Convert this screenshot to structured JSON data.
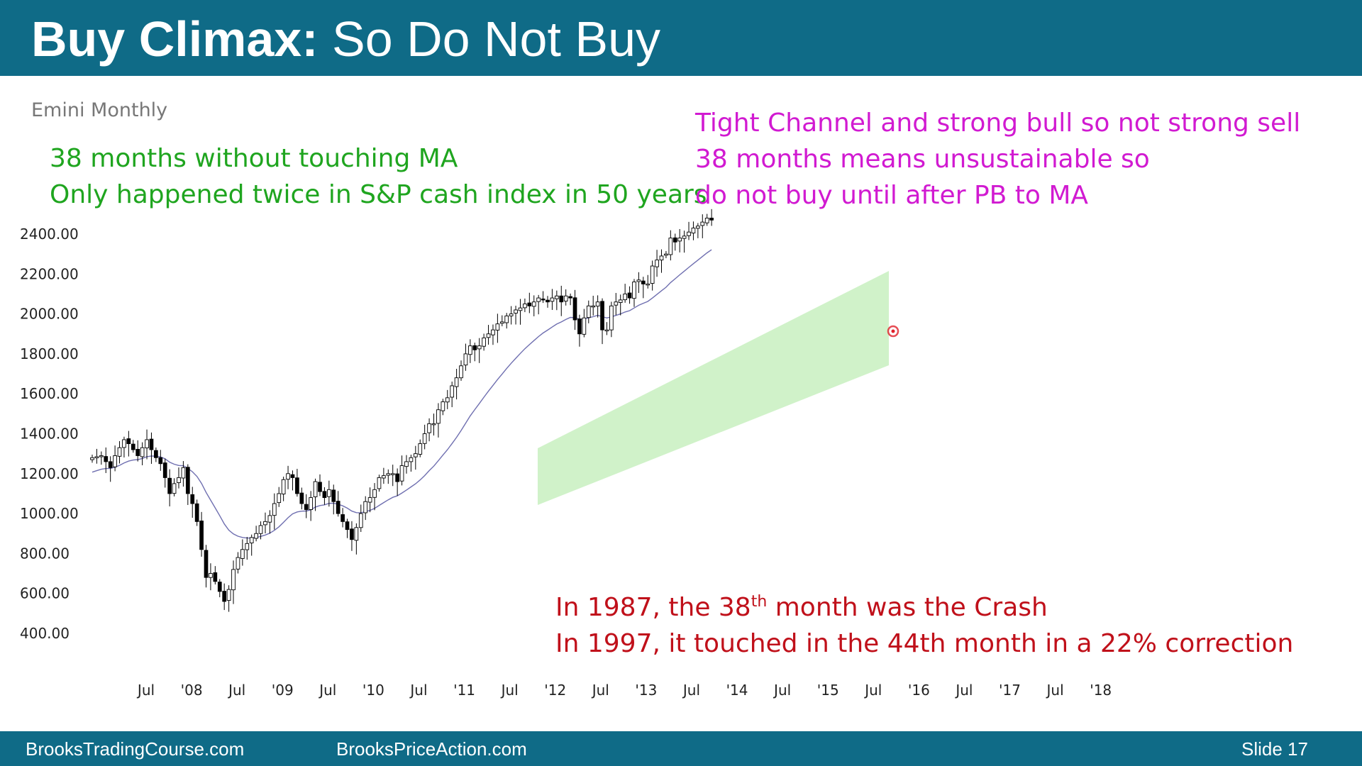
{
  "slide": {
    "title_bold": "Buy Climax:",
    "title_rest": " So Do Not Buy",
    "subtitle": "Emini Monthly",
    "footer_left": "BrooksTradingCourse.com",
    "footer_center": "BrooksPriceAction.com",
    "footer_right": "Slide  17"
  },
  "annotations": {
    "green": [
      "38 months without touching MA",
      "Only happened twice in S&P cash index in 50 years"
    ],
    "magenta": [
      "Tight Channel and strong bull so not strong sell",
      "38 months means unsustainable so",
      "do not buy until after PB to MA"
    ],
    "red_line1_pre": "In 1987, the 38",
    "red_line1_sup": "th",
    "red_line1_post": " month was the Crash",
    "red_line2": "In 1997, it touched in the 44th month in a 22% correction"
  },
  "colors": {
    "header": "#0f6b87",
    "bull_candle": "#ffffff",
    "bear_candle": "#000000",
    "moving_average": "#6f6fb0",
    "channel": "#c8f0c0",
    "marker": "#e0202a"
  },
  "chart_data": {
    "type": "candlestick",
    "title": "Emini Monthly",
    "ylim": [
      400,
      2500
    ],
    "y_ticks": [
      "2400.00",
      "2200.00",
      "2000.00",
      "1800.00",
      "1600.00",
      "1400.00",
      "1200.00",
      "1000.00",
      "800.00",
      "600.00",
      "400.00"
    ],
    "x_ticks": [
      "Jul",
      "'08",
      "Jul",
      "'09",
      "Jul",
      "'10",
      "Jul",
      "'11",
      "Jul",
      "'12",
      "Jul",
      "'13",
      "Jul",
      "'14",
      "Jul",
      "'15",
      "Jul",
      "'16",
      "Jul",
      "'17",
      "Jul",
      "'18"
    ],
    "x_tick_months": [
      0,
      6,
      12,
      18,
      24,
      30,
      36,
      42,
      48,
      54,
      60,
      66,
      72,
      78,
      84,
      90,
      96,
      102,
      108,
      114,
      120,
      126
    ],
    "first_bar": "Jul 2007 (approx)",
    "close": [
      1280,
      1285,
      1290,
      1260,
      1230,
      1290,
      1330,
      1370,
      1350,
      1320,
      1290,
      1330,
      1370,
      1320,
      1280,
      1250,
      1180,
      1100,
      1150,
      1180,
      1230,
      1100,
      1050,
      960,
      820,
      680,
      700,
      660,
      610,
      560,
      620,
      720,
      780,
      820,
      850,
      880,
      900,
      940,
      960,
      990,
      1050,
      1100,
      1170,
      1200,
      1180,
      1100,
      1050,
      1020,
      1080,
      1160,
      1110,
      1080,
      1120,
      1060,
      1000,
      960,
      920,
      870,
      930,
      1000,
      1060,
      1080,
      1120,
      1180,
      1190,
      1200,
      1200,
      1160,
      1240,
      1260,
      1280,
      1300,
      1350,
      1400,
      1450,
      1450,
      1520,
      1560,
      1580,
      1640,
      1680,
      1740,
      1800,
      1840,
      1820,
      1840,
      1880,
      1900,
      1920,
      1950,
      1960,
      1990,
      2000,
      2020,
      2030,
      2050,
      2040,
      2060,
      2080,
      2070,
      2060,
      2080,
      2090,
      2060,
      2090,
      2080,
      1970,
      1900,
      1980,
      2040,
      2040,
      2060,
      1920,
      1920,
      2040,
      2060,
      2070,
      2100,
      2080,
      2160,
      2170,
      2150,
      2150,
      2240,
      2270,
      2290,
      2300,
      2380,
      2360,
      2380,
      2390,
      2410,
      2430,
      2440,
      2460,
      2480,
      2470
    ],
    "ma_ylim_note": "20-bar exponential moving average drawn as thin line"
  }
}
